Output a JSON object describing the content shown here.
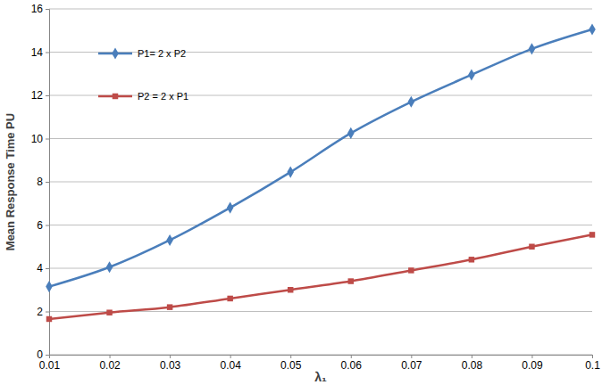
{
  "chart_data": {
    "type": "line",
    "x_label": "λ₁",
    "y_label": "Mean Response Time PU",
    "x": [
      0.01,
      0.02,
      0.03,
      0.04,
      0.05,
      0.06,
      0.07,
      0.08,
      0.09,
      0.1
    ],
    "series": [
      {
        "name": "P1= 2 x P2",
        "color": "#4a7ebb",
        "marker": "diamond",
        "values": [
          3.15,
          4.05,
          5.3,
          6.8,
          8.45,
          10.25,
          11.7,
          12.95,
          14.15,
          15.05
        ]
      },
      {
        "name": "P2 = 2 x P1",
        "color": "#be4b48",
        "marker": "square",
        "values": [
          1.65,
          1.95,
          2.2,
          2.6,
          3.0,
          3.4,
          3.9,
          4.4,
          5.0,
          5.55
        ]
      }
    ],
    "xlim": [
      0.01,
      0.1
    ],
    "xticks": [
      0.01,
      0.02,
      0.03,
      0.04,
      0.05,
      0.06,
      0.07,
      0.08,
      0.09,
      0.1
    ],
    "ylim": [
      0,
      16
    ],
    "yticks": [
      0,
      2,
      4,
      6,
      8,
      10,
      12,
      14,
      16
    ],
    "grid": true,
    "legend": "top-left"
  }
}
